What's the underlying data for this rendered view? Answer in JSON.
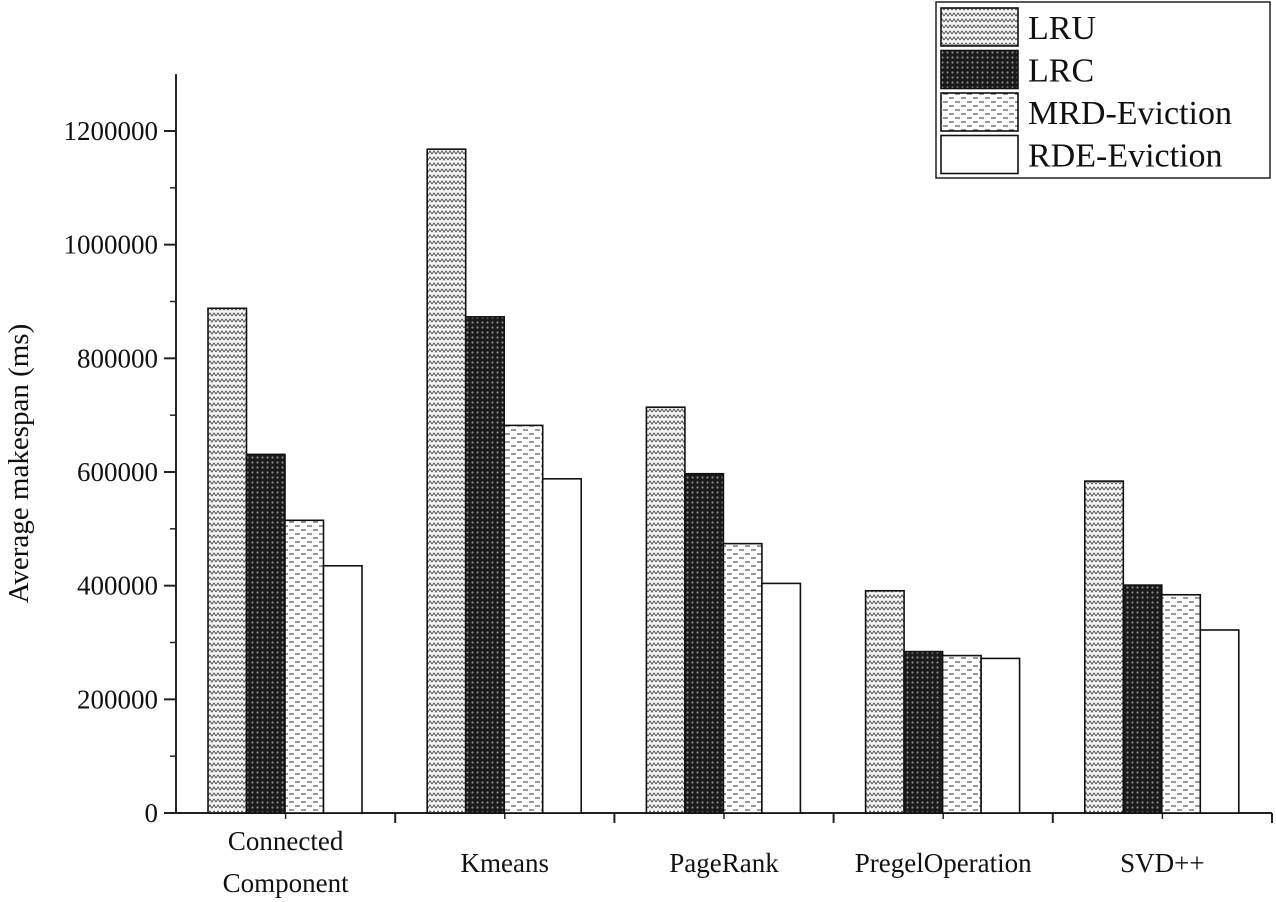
{
  "chart_data": {
    "type": "bar",
    "title": "",
    "xlabel": "",
    "ylabel": "Average makespan (ms)",
    "ylim": [
      0,
      1300000
    ],
    "yticks": [
      0,
      200000,
      400000,
      600000,
      800000,
      1000000,
      1200000
    ],
    "ytick_labels": [
      "0",
      "200000",
      "400000",
      "600000",
      "800000",
      "1000000",
      "1200000"
    ],
    "categories": [
      [
        "Connected",
        "Component"
      ],
      [
        "Kmeans"
      ],
      [
        "PageRank"
      ],
      [
        "PregelOperation"
      ],
      [
        "SVD++"
      ]
    ],
    "series": [
      {
        "name": "LRU",
        "pattern": "zigzag",
        "values": [
          888000,
          1168000,
          714000,
          391000,
          584000
        ]
      },
      {
        "name": "LRC",
        "pattern": "dark-dots",
        "values": [
          631000,
          873000,
          597000,
          284000,
          401000
        ]
      },
      {
        "name": "MRD-Eviction",
        "pattern": "dashes",
        "values": [
          515000,
          682000,
          474000,
          277000,
          384000
        ]
      },
      {
        "name": "RDE-Eviction",
        "pattern": "plain",
        "values": [
          435000,
          588000,
          404000,
          272000,
          322000
        ]
      }
    ],
    "grid": false,
    "legend_position": "top-right"
  }
}
